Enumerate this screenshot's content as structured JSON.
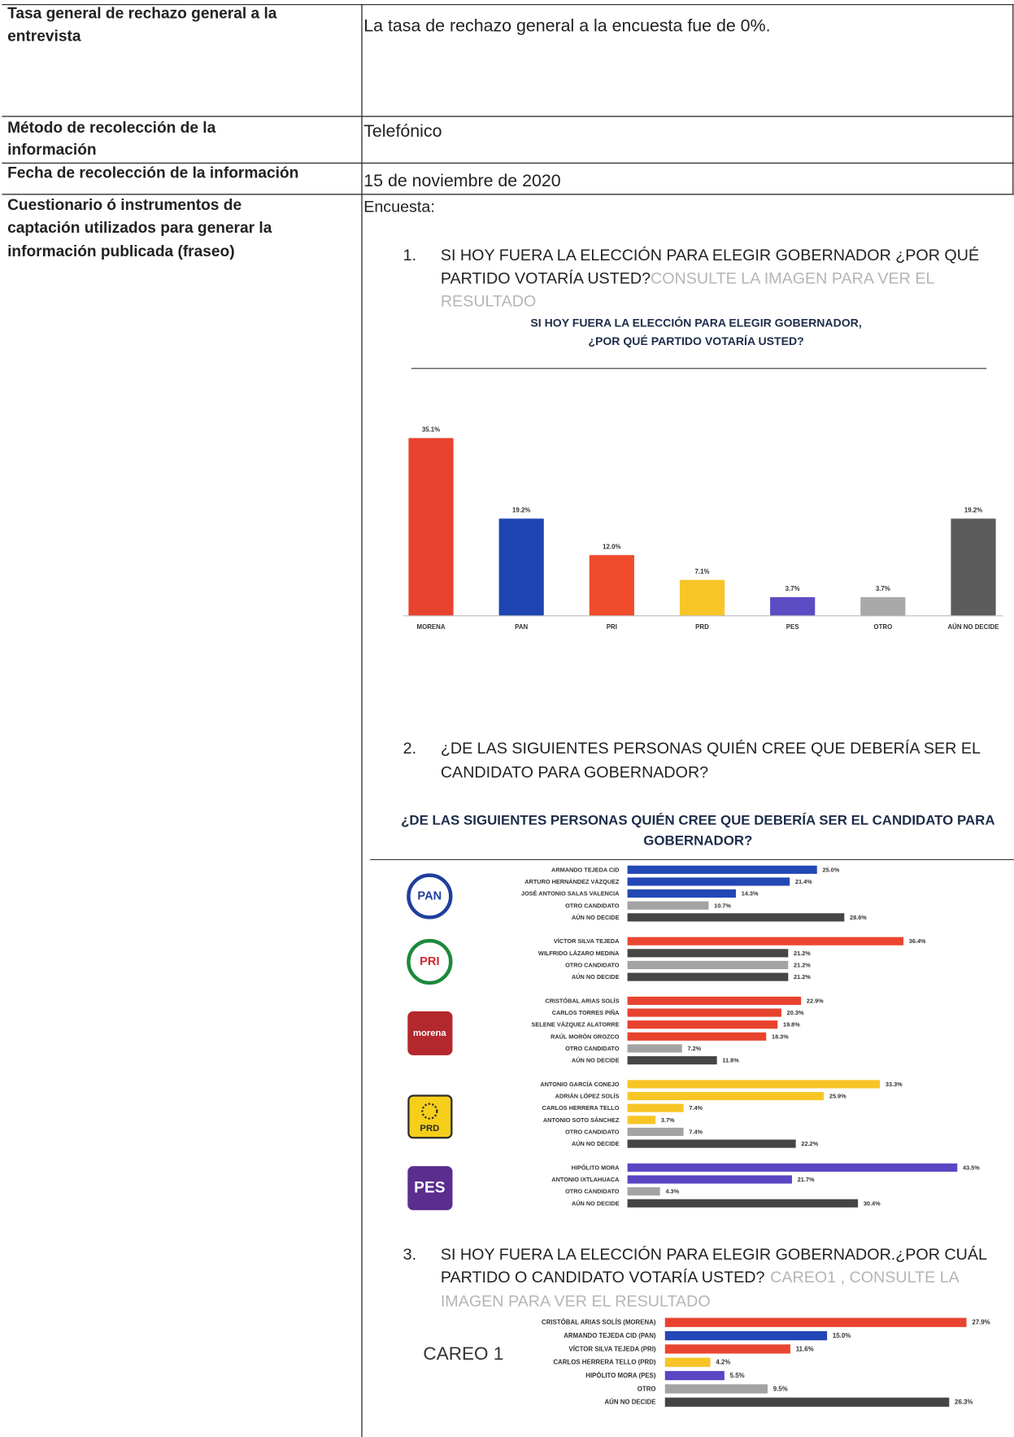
{
  "table": {
    "rows": [
      {
        "label": [
          "Tasa general de rechazo general a la",
          "entrevista"
        ],
        "value": "La tasa de rechazo general a la encuesta fue de 0%."
      },
      {
        "label": [
          "Método de recolección de la",
          "información"
        ],
        "value": "Telefónico"
      },
      {
        "label": [
          "Fecha de recolección de la información"
        ],
        "value": "15 de noviembre de 2020"
      },
      {
        "label": [
          "Cuestionario ó instrumentos de",
          "captación utilizados para generar la",
          "información publicada (fraseo)"
        ],
        "value": "Encuesta:"
      }
    ]
  },
  "questions": [
    {
      "number": "1.",
      "text": [
        "SI HOY FUERA LA ELECCIÓN PARA ELEGIR GOBERNADOR ¿POR QUÉ",
        "PARTIDO VOTARÍA USTED?"
      ],
      "note": [
        "CONSULTE LA IMAGEN PARA VER EL",
        "RESULTADO"
      ],
      "chart": {
        "type": "bar",
        "title": [
          "SI HOY FUERA LA ELECCIÓN PARA ELEGIR GOBERNADOR,",
          "¿POR QUÉ PARTIDO VOTARÍA USTED?"
        ],
        "categories": [
          "MORENA",
          "PAN",
          "PRI",
          "PRD",
          "PES",
          "OTRO",
          "AÚN NO DECIDE"
        ],
        "values": [
          35.1,
          19.2,
          12.0,
          7.1,
          3.7,
          3.7,
          19.2
        ],
        "value_labels": [
          "35.1%",
          "19.2%",
          "12.0%",
          "7.1%",
          "3.7%",
          "3.7%",
          "19.2%"
        ],
        "colors": [
          "#e8432e",
          "#1f45b3",
          "#f04b2b",
          "#f7c526",
          "#5b4cc4",
          "#a9a9a9",
          "#5c5c5c"
        ]
      }
    },
    {
      "number": "2.",
      "text": [
        "¿DE LAS SIGUIENTES PERSONAS QUIÉN CREE QUE DEBERÍA SER EL",
        "CANDIDATO PARA GOBERNADOR?"
      ],
      "chart": {
        "type": "grouped-hbar",
        "title": [
          "¿DE LAS SIGUIENTES PERSONAS QUIÉN CREE QUE DEBERÍA SER EL CANDIDATO PARA",
          "GOBERNADOR?"
        ],
        "groups": [
          {
            "logo": "PAN",
            "categories": [
              "ARMANDO TEJEDA CID",
              "ARTURO HERNÁNDEZ VÁZQUEZ",
              "JOSÉ ANTONIO SALAS VALENCIA",
              "OTRO CANDIDATO",
              "AÚN NO DECIDE"
            ],
            "values": [
              25.0,
              21.4,
              14.3,
              10.7,
              28.6
            ],
            "value_labels": [
              "25.0%",
              "21.4%",
              "14.3%",
              "10.7%",
              "28.6%"
            ],
            "colors": [
              "#2347b5",
              "#2347b5",
              "#2347b5",
              "#a3a3a3",
              "#454545"
            ]
          },
          {
            "logo": "PRI",
            "categories": [
              "VÍCTOR SILVA TEJEDA",
              "WILFRIDO LÁZARO MEDINA",
              "OTRO CANDIDATO",
              "AÚN NO DECIDE"
            ],
            "values": [
              36.4,
              21.2,
              21.2,
              21.2
            ],
            "value_labels": [
              "36.4%",
              "21.2%",
              "21.2%",
              "21.2%"
            ],
            "colors": [
              "#ea4631",
              "#454545",
              "#a3a3a3",
              "#454545"
            ]
          },
          {
            "logo": "morena",
            "categories": [
              "CRISTÓBAL ARIAS SOLÍS",
              "CARLOS TORRES PIÑA",
              "SELENE VÁZQUEZ ALATORRE",
              "RAÚL MORÓN OROZCO",
              "OTRO CANDIDATO",
              "AÚN NO DECIDE"
            ],
            "values": [
              22.9,
              20.3,
              19.8,
              18.3,
              7.2,
              11.8
            ],
            "value_labels": [
              "22.9%",
              "20.3%",
              "19.8%",
              "18.3%",
              "7.2%",
              "11.8%"
            ],
            "colors": [
              "#e8432e",
              "#e8432e",
              "#e8432e",
              "#e8432e",
              "#a3a3a3",
              "#454545"
            ]
          },
          {
            "logo": "PRD",
            "categories": [
              "ANTONIO GARCÍA CONEJO",
              "ADRIÁN LÓPEZ SOLÍS",
              "CARLOS HERRERA TELLO",
              "ANTONIO SOTO SÁNCHEZ",
              "OTRO CANDIDATO",
              "AÚN NO DECIDE"
            ],
            "values": [
              33.3,
              25.9,
              7.4,
              3.7,
              7.4,
              22.2
            ],
            "value_labels": [
              "33.3%",
              "25.9%",
              "7.4%",
              "3.7%",
              "7.4%",
              "22.2%"
            ],
            "colors": [
              "#f7c526",
              "#f7c526",
              "#f7c526",
              "#f7c526",
              "#a3a3a3",
              "#454545"
            ]
          },
          {
            "logo": "PES",
            "categories": [
              "HIPÓLITO MORA",
              "ANTONIO IXTLAHUACA",
              "OTRO CANDIDATO",
              "AÚN NO DECIDE"
            ],
            "values": [
              43.5,
              21.7,
              4.3,
              30.4
            ],
            "value_labels": [
              "43.5%",
              "21.7%",
              "4.3%",
              "30.4%"
            ],
            "colors": [
              "#5a46c2",
              "#5a46c2",
              "#a3a3a3",
              "#454545"
            ]
          }
        ]
      }
    },
    {
      "number": "3.",
      "text": [
        "SI HOY FUERA LA ELECCIÓN PARA ELEGIR GOBERNADOR.¿POR CUÁL",
        "PARTIDO O CANDIDATO VOTARÍA USTED?"
      ],
      "note": [
        "CAREO1 , CONSULTE LA",
        "IMAGEN PARA VER EL RESULTADO"
      ],
      "chart": {
        "type": "hbar",
        "label": "CAREO 1",
        "categories": [
          "CRISTÓBAL ARIAS SOLÍS (MORENA)",
          "ARMANDO TEJEDA CID (PAN)",
          "VÍCTOR SILVA TEJEDA (PRI)",
          "CARLOS HERRERA TELLO (PRD)",
          "HIPÓLITO MORA (PES)",
          "OTRO",
          "AÚN NO DECIDE"
        ],
        "values": [
          27.9,
          15.0,
          11.6,
          4.2,
          5.5,
          9.5,
          26.3
        ],
        "value_labels": [
          "27.9%",
          "15.0%",
          "11.6%",
          "4.2%",
          "5.5%",
          "9.5%",
          "26.3%"
        ],
        "colors": [
          "#e8432e",
          "#2347b5",
          "#ea4631",
          "#f7c526",
          "#5a46c2",
          "#a3a3a3",
          "#454545"
        ]
      }
    }
  ]
}
